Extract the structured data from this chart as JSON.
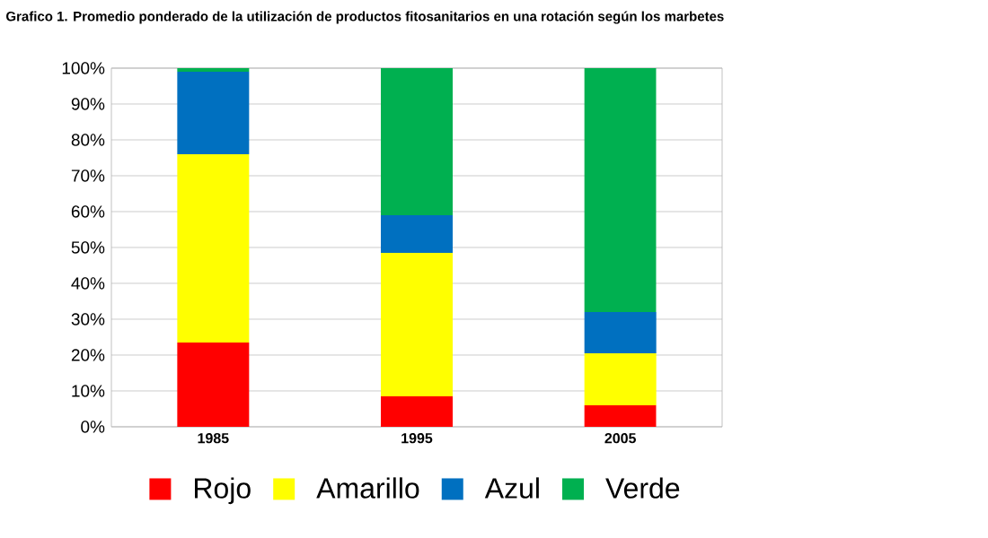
{
  "chart_data": {
    "type": "bar",
    "stacked": true,
    "title": "Grafico 1. Promedio ponderado de la utilización de productos fitosanitarios en una rotación según los marbetes",
    "categories": [
      "1985",
      "1995",
      "2005"
    ],
    "series": [
      {
        "name": "Rojo",
        "color": "#ff0000",
        "values": [
          23.5,
          8.5,
          6
        ]
      },
      {
        "name": "Amarillo",
        "color": "#ffff00",
        "values": [
          52.5,
          40,
          14.5
        ]
      },
      {
        "name": "Azul",
        "color": "#0070c0",
        "values": [
          23,
          10.5,
          11.5
        ]
      },
      {
        "name": "Verde",
        "color": "#00b050",
        "values": [
          1,
          41,
          68
        ]
      }
    ],
    "ylim": [
      0,
      100
    ],
    "yticks": [
      {
        "value": 0,
        "label": "0%"
      },
      {
        "value": 10,
        "label": "10%"
      },
      {
        "value": 20,
        "label": "20%"
      },
      {
        "value": 30,
        "label": "30%"
      },
      {
        "value": 40,
        "label": "40%"
      },
      {
        "value": 50,
        "label": "50%"
      },
      {
        "value": 60,
        "label": "60%"
      },
      {
        "value": 70,
        "label": "70%"
      },
      {
        "value": 80,
        "label": "80%"
      },
      {
        "value": 90,
        "label": "90%"
      },
      {
        "value": 100,
        "label": "100%"
      }
    ],
    "grid": "y",
    "legend": "bottom"
  }
}
